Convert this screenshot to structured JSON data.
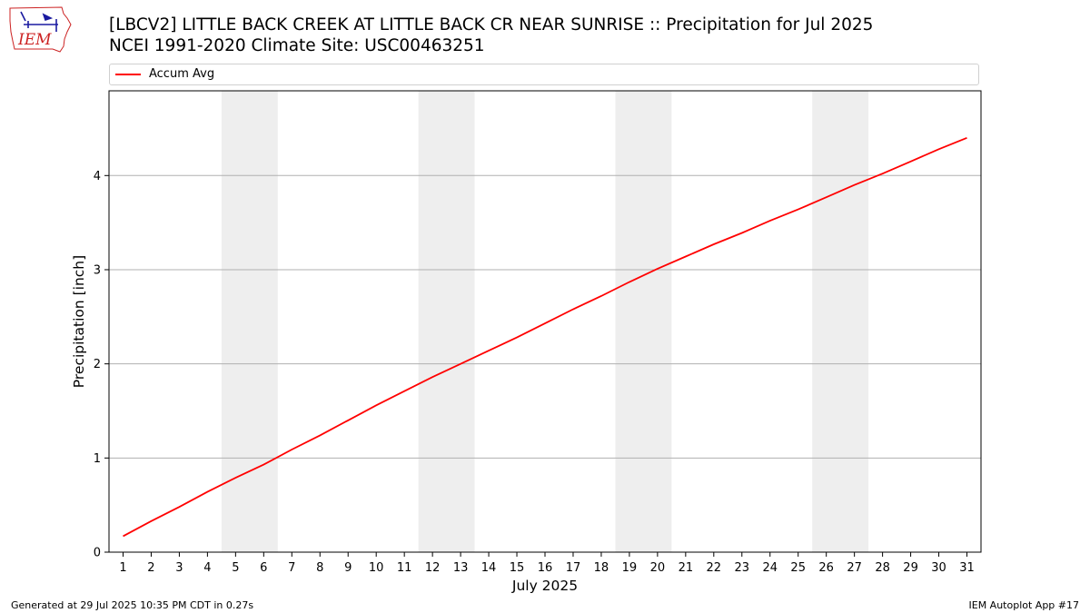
{
  "header": {
    "logo_text": "IEM",
    "title_line1": "[LBCV2] LITTLE BACK CREEK  AT LITTLE BACK CR NEAR SUNRISE :: Precipitation for Jul 2025",
    "title_line2": "NCEI 1991-2020 Climate Site: USC00463251"
  },
  "footer": {
    "generated": "Generated at 29 Jul 2025 10:35 PM CDT in 0.27s",
    "app": "IEM Autoplot App #17"
  },
  "colors": {
    "line": "#ff0000",
    "weekend_band": "#eeeeee",
    "grid": "#b0b0b0",
    "logo_accent": "#cc2222",
    "logo_blue": "#1a1aa0"
  },
  "chart_data": {
    "type": "line",
    "title": "[LBCV2] LITTLE BACK CREEK  AT LITTLE BACK CR NEAR SUNRISE :: Precipitation for Jul 2025",
    "subtitle": "NCEI 1991-2020 Climate Site: USC00463251",
    "xlabel": "July 2025",
    "ylabel": "Precipitation [inch]",
    "x": [
      1,
      2,
      3,
      4,
      5,
      6,
      7,
      8,
      9,
      10,
      11,
      12,
      13,
      14,
      15,
      16,
      17,
      18,
      19,
      20,
      21,
      22,
      23,
      24,
      25,
      26,
      27,
      28,
      29,
      30,
      31
    ],
    "xticks": [
      "1",
      "2",
      "3",
      "4",
      "5",
      "6",
      "7",
      "8",
      "9",
      "10",
      "11",
      "12",
      "13",
      "14",
      "15",
      "16",
      "17",
      "18",
      "19",
      "20",
      "21",
      "22",
      "23",
      "24",
      "25",
      "26",
      "27",
      "28",
      "29",
      "30",
      "31"
    ],
    "yticks": [
      "0",
      "1",
      "2",
      "3",
      "4"
    ],
    "xlim": [
      0.5,
      31.5
    ],
    "ylim": [
      0,
      4.9
    ],
    "grid": "horizontal",
    "legend_position": "top",
    "weekend_bands": [
      [
        4.5,
        6.5
      ],
      [
        11.5,
        13.5
      ],
      [
        18.5,
        20.5
      ],
      [
        25.5,
        27.5
      ]
    ],
    "series": [
      {
        "name": "Accum Avg",
        "values": [
          0.17,
          0.33,
          0.48,
          0.64,
          0.79,
          0.93,
          1.09,
          1.24,
          1.4,
          1.56,
          1.71,
          1.86,
          2.0,
          2.14,
          2.28,
          2.43,
          2.58,
          2.72,
          2.87,
          3.01,
          3.14,
          3.27,
          3.39,
          3.52,
          3.64,
          3.77,
          3.9,
          4.02,
          4.15,
          4.28,
          4.4
        ]
      }
    ]
  }
}
